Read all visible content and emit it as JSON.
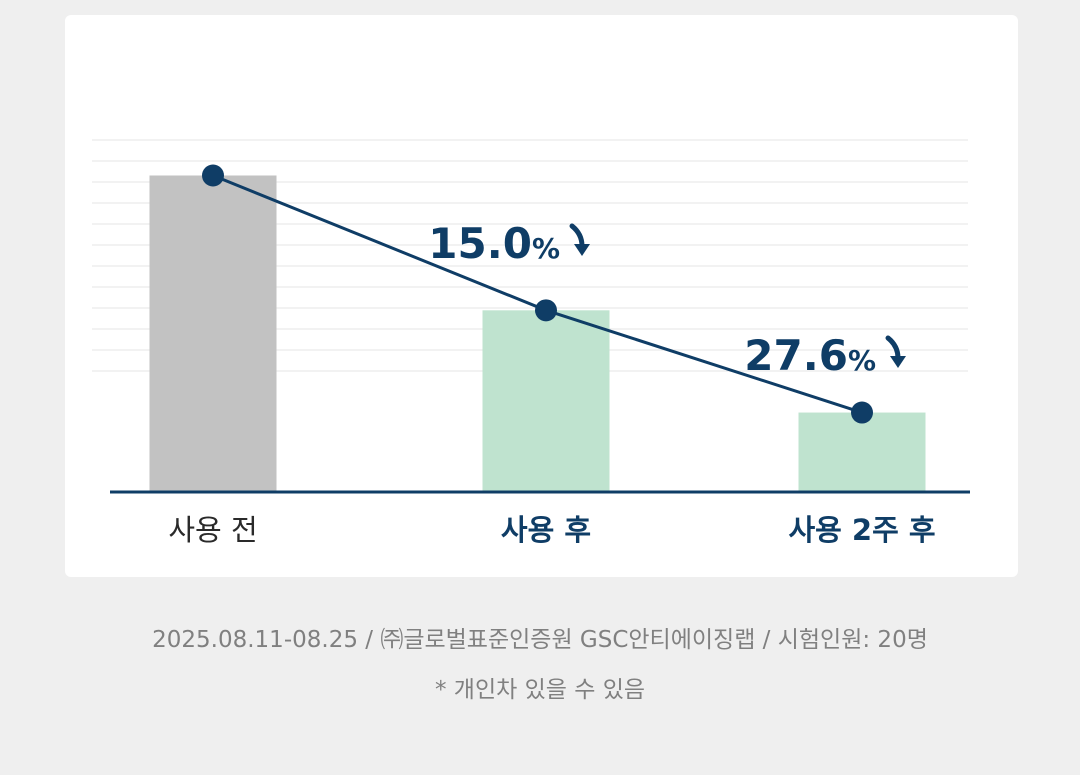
{
  "chart_data": {
    "type": "bar",
    "categories": [
      "사용 전",
      "사용 후",
      "사용 2주 후"
    ],
    "values": [
      100,
      57.4,
      25.1
    ],
    "ylim": [
      0,
      115
    ],
    "grid": true,
    "annotations": [
      {
        "category": "사용 후",
        "number": "15.0",
        "unit": "%"
      },
      {
        "category": "사용 2주 후",
        "number": "27.6",
        "unit": "%"
      }
    ],
    "colors": {
      "before_bar": "#c2c2c2",
      "after_bar": "#bfe3cf",
      "line": "#0f3d66",
      "axis": "#0f3d66",
      "label_before": "#2a2a2a",
      "label_after": "#0f3d66",
      "grid": "#eeeeee"
    }
  },
  "footnote": {
    "line1": "2025.08.11-08.25 / ㈜글로벌표준인증원 GSC안티에이징랩 / 시험인원: 20명",
    "line2": "* 개인차 있을 수 있음"
  }
}
